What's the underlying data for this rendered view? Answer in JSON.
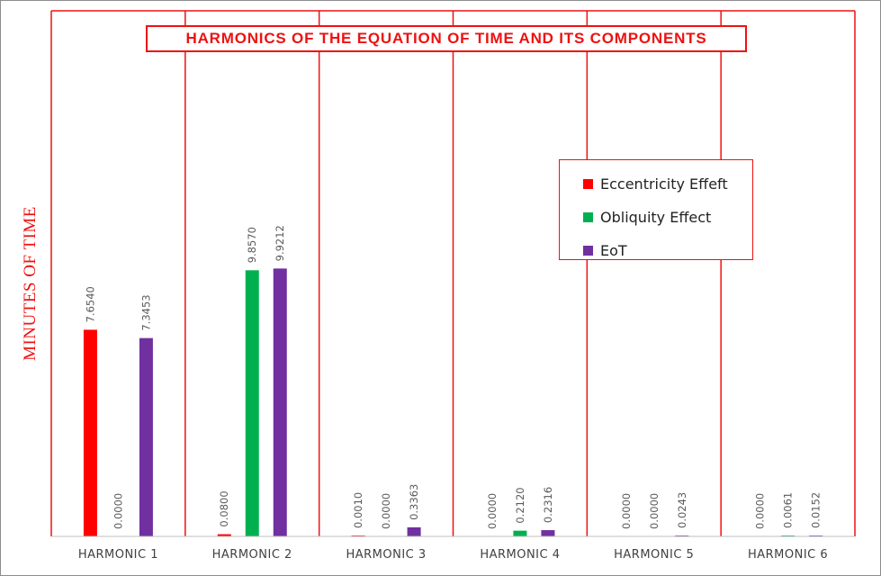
{
  "chart_data": {
    "type": "bar",
    "title": "HARMONICS OF THE EQUATION OF TIME AND ITS COMPONENTS",
    "xlabel": "",
    "ylabel": "MINUTES OF TIME",
    "categories": [
      "HARMONIC 1",
      "HARMONIC 2",
      "HARMONIC 3",
      "HARMONIC 4",
      "HARMONIC 5",
      "HARMONIC 6"
    ],
    "series": [
      {
        "name": "Eccentricity Effeft",
        "color": "#ff0000",
        "values": [
          7.654,
          0.08,
          0.001,
          0.0,
          0.0,
          0.0
        ],
        "labels": [
          "7.6540",
          "0.0800",
          "0.0010",
          "0.0000",
          "0.0000",
          "0.0000"
        ]
      },
      {
        "name": "Obliquity Effect",
        "color": "#00b050",
        "values": [
          0.0,
          9.857,
          0.0,
          0.212,
          0.0,
          0.0061
        ],
        "labels": [
          "0.0000",
          "9.8570",
          "0.0000",
          "0.2120",
          "0.0000",
          "0.0061"
        ]
      },
      {
        "name": "EoT",
        "color": "#7030a0",
        "values": [
          7.3453,
          9.9212,
          0.3363,
          0.2316,
          0.0243,
          0.0152
        ],
        "labels": [
          "7.3453",
          "9.9212",
          "0.3363",
          "0.2316",
          "0.0243",
          "0.0152"
        ]
      }
    ],
    "ylim": [
      0,
      12.5
    ],
    "grid": false,
    "legend_position": "right",
    "colors": {
      "frame": "#ee1111",
      "axis": "#bfbfbf",
      "border": "#7f7f7f"
    }
  }
}
